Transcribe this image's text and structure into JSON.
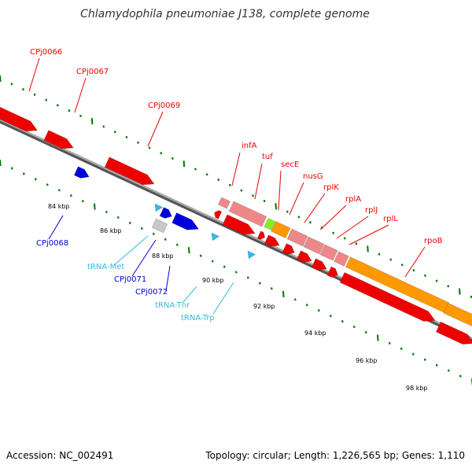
{
  "title": "Chlamydophila pneumoniae J138, complete genome",
  "footer": {
    "accession": "Accession: NC_002491",
    "topology": "Topology: circular; Length: 1,226,565 bp; Genes: 1,110"
  },
  "colors": {
    "protein_red": "#ee0000",
    "cpj_blue": "#0000dd",
    "trna_cyan": "#33bbee",
    "trna_label": "#33bbdd",
    "pink": "#ee8888",
    "orange": "#ff9900",
    "green": "#88ee22",
    "grey_gene": "#c8c8c8",
    "tick_green": "#007700",
    "backbone": "#888888"
  },
  "scale_labels": [
    "84 kbp",
    "86 kbp",
    "88 kbp",
    "90 kbp",
    "92 kbp",
    "94 kbp",
    "96 kbp",
    "98 kbp"
  ],
  "genes": [
    {
      "label": "CPj0066",
      "color": "protein_red"
    },
    {
      "label": "CPj0067",
      "color": "protein_red"
    },
    {
      "label": "CPj0068",
      "color": "cpj_blue"
    },
    {
      "label": "CPj0069",
      "color": "protein_red"
    },
    {
      "label": "tRNA-Met",
      "color": "trna_label"
    },
    {
      "label": "CPj0071",
      "color": "cpj_blue"
    },
    {
      "label": "CPj0072",
      "color": "cpj_blue"
    },
    {
      "label": "tRNA-Thr",
      "color": "trna_label"
    },
    {
      "label": "tRNA-Trp",
      "color": "trna_label"
    },
    {
      "label": "infA",
      "color": "protein_red"
    },
    {
      "label": "tuf",
      "color": "protein_red"
    },
    {
      "label": "secE",
      "color": "protein_red"
    },
    {
      "label": "nusG",
      "color": "protein_red"
    },
    {
      "label": "rplK",
      "color": "protein_red"
    },
    {
      "label": "rplA",
      "color": "protein_red"
    },
    {
      "label": "rplJ",
      "color": "protein_red"
    },
    {
      "label": "rplL",
      "color": "protein_red"
    },
    {
      "label": "rpoB",
      "color": "protein_red"
    }
  ]
}
